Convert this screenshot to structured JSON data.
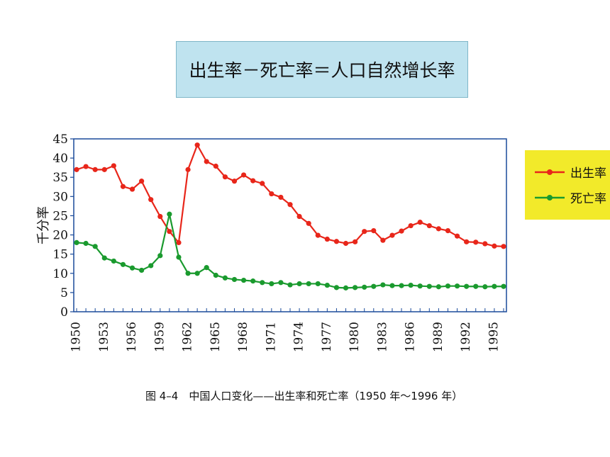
{
  "formula": "出生率－死亡率＝人口自然增长率",
  "caption": "图 4–4　中国人口变化——出生率和死亡率（1950 年～1996 年）",
  "legend": {
    "birth_label": "出生率",
    "death_label": "死亡率"
  },
  "colors": {
    "birth": "#e8261a",
    "death": "#1a9a2e",
    "axis": "#1a4a9a"
  },
  "chart_data": {
    "type": "line",
    "ylabel": "千分率",
    "xlabel": "",
    "ylim": [
      0,
      45
    ],
    "yticks": [
      0,
      5,
      10,
      15,
      20,
      25,
      30,
      35,
      40,
      45
    ],
    "xticks": [
      1950,
      1953,
      1956,
      1959,
      1962,
      1965,
      1968,
      1971,
      1974,
      1977,
      1980,
      1983,
      1986,
      1989,
      1992,
      1995
    ],
    "x": [
      1950,
      1951,
      1952,
      1953,
      1954,
      1955,
      1956,
      1957,
      1958,
      1959,
      1960,
      1961,
      1962,
      1963,
      1964,
      1965,
      1966,
      1967,
      1968,
      1969,
      1970,
      1971,
      1972,
      1973,
      1974,
      1975,
      1976,
      1977,
      1978,
      1979,
      1980,
      1981,
      1982,
      1983,
      1984,
      1985,
      1986,
      1987,
      1988,
      1989,
      1990,
      1991,
      1992,
      1993,
      1994,
      1995,
      1996
    ],
    "series": [
      {
        "name": "出生率",
        "values": [
          37.0,
          37.8,
          37.0,
          37.0,
          38.0,
          32.6,
          31.9,
          34.0,
          29.2,
          24.8,
          20.9,
          18.0,
          37.0,
          43.4,
          39.1,
          37.9,
          35.1,
          34.0,
          35.6,
          34.1,
          33.4,
          30.7,
          29.8,
          27.9,
          24.8,
          23.0,
          19.9,
          18.9,
          18.3,
          17.8,
          18.2,
          20.9,
          21.1,
          18.6,
          19.9,
          21.0,
          22.4,
          23.3,
          22.4,
          21.6,
          21.1,
          19.7,
          18.2,
          18.1,
          17.7,
          17.1,
          17.0
        ]
      },
      {
        "name": "死亡率",
        "values": [
          18.0,
          17.8,
          17.0,
          14.0,
          13.2,
          12.3,
          11.4,
          10.8,
          12.0,
          14.6,
          25.4,
          14.2,
          10.0,
          10.0,
          11.5,
          9.5,
          8.8,
          8.4,
          8.2,
          8.0,
          7.6,
          7.3,
          7.6,
          7.0,
          7.3,
          7.3,
          7.3,
          6.9,
          6.3,
          6.2,
          6.3,
          6.4,
          6.6,
          7.0,
          6.8,
          6.8,
          6.9,
          6.7,
          6.6,
          6.5,
          6.7,
          6.7,
          6.6,
          6.6,
          6.5,
          6.6,
          6.6
        ]
      }
    ]
  }
}
